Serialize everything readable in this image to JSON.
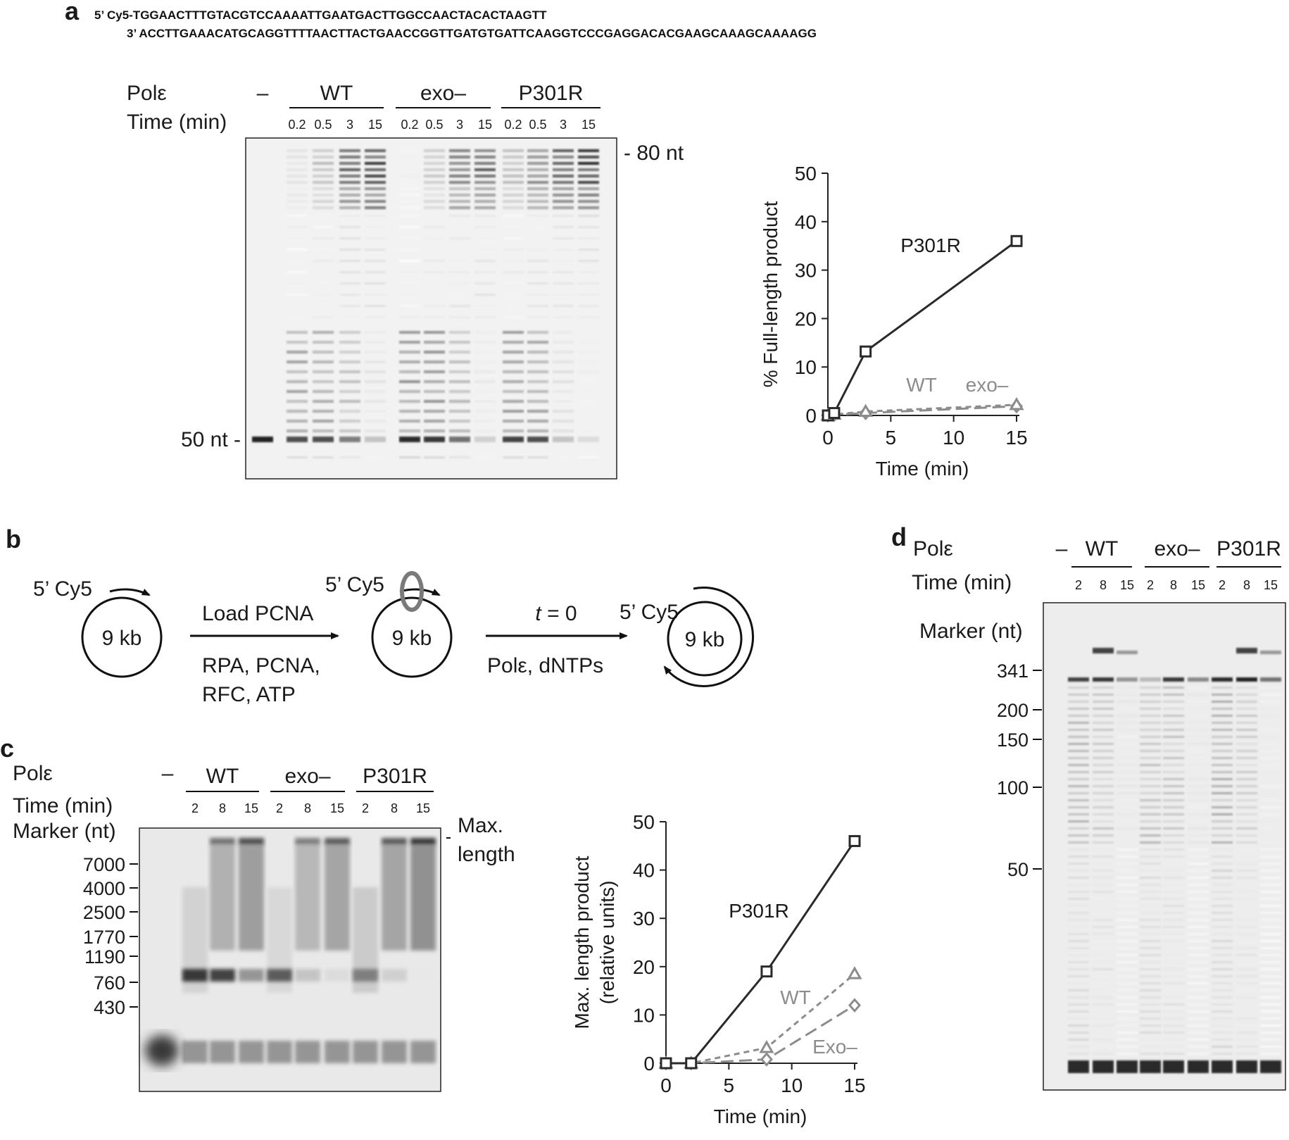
{
  "panel_a": {
    "letter": "a",
    "seq_top": "5’ Cy5-TGGAACTTTGTACGTCCAAAATTGAATGACTTGGCCAACTACACTAAGTT",
    "seq_bottom": "3’ ACCTTGAAACATGCAGGTTTTAACTTACTGAACCGGTTGATGTGATTCAAGGTCCCGAGGACACGAAGCAAAGCAAAAGG",
    "row_pol": "Polε",
    "row_time": "Time (min)",
    "dash": "–",
    "groups": [
      "WT",
      "exo–",
      "P301R"
    ],
    "lanes": [
      "0.2",
      "0.5",
      "3",
      "15",
      "0.2",
      "0.5",
      "3",
      "15",
      "0.2",
      "0.5",
      "3",
      "15"
    ],
    "marker_80": "- 80 nt",
    "marker_50": "50 nt -"
  },
  "panel_b": {
    "letter": "b",
    "cy5_1": "5’ Cy5",
    "cy5_2": "5’ Cy5",
    "cy5_3": "5’ Cy5",
    "kb_1": "9 kb",
    "kb_2": "9 kb",
    "kb_3": "9 kb",
    "step1_top": "Load PCNA",
    "step1_bottom_1": "RPA, PCNA,",
    "step1_bottom_2": "RFC, ATP",
    "step2_top": "t = 0",
    "step2_bottom": "Polε, dNTPs"
  },
  "panel_c": {
    "letter": "c",
    "row_pol": "Polε",
    "row_time": "Time (min)",
    "row_marker": "Marker (nt)",
    "dash": "–",
    "groups": [
      "WT",
      "exo–",
      "P301R"
    ],
    "lanes": [
      "2",
      "8",
      "15",
      "2",
      "8",
      "15",
      "2",
      "8",
      "15"
    ],
    "markers": [
      "7000",
      "4000",
      "2500",
      "1770",
      "1190",
      "760",
      "430"
    ],
    "max_label_1": "Max.",
    "max_label_2": "length"
  },
  "panel_d": {
    "letter": "d",
    "row_pol": "Polε",
    "row_time": "Time (min)",
    "row_marker": "Marker (nt)",
    "dash": "–",
    "groups": [
      "WT",
      "exo–",
      "P301R"
    ],
    "lanes": [
      "2",
      "8",
      "15",
      "2",
      "8",
      "15",
      "2",
      "8",
      "15"
    ],
    "markers": [
      "341",
      "200",
      "150",
      "100",
      "50"
    ]
  },
  "chart_data": [
    {
      "type": "line",
      "panel": "a",
      "xlabel": "Time (min)",
      "ylabel": "% Full-length product",
      "xlim": [
        0,
        15
      ],
      "ylim": [
        0,
        50
      ],
      "xticks": [
        0,
        5,
        10,
        15
      ],
      "yticks": [
        0,
        10,
        20,
        30,
        40,
        50
      ],
      "x": [
        0,
        0.5,
        3,
        15
      ],
      "series": [
        {
          "name": "P301R",
          "values": [
            0,
            0.5,
            13.2,
            36
          ],
          "color": "#2a2a2a",
          "marker": "square",
          "style": "solid"
        },
        {
          "name": "WT",
          "values": [
            0,
            0.2,
            0.8,
            2.2
          ],
          "color": "#8c8c8c",
          "marker": "triangle",
          "style": "dashed"
        },
        {
          "name": "exo–",
          "values": [
            0,
            0.1,
            0.5,
            1.9
          ],
          "color": "#8c8c8c",
          "marker": "diamond",
          "style": "longdash"
        }
      ]
    },
    {
      "type": "line",
      "panel": "c",
      "xlabel": "Time (min)",
      "ylabel": "Max. length product",
      "ylabel2": "(relative units)",
      "xlim": [
        0,
        15
      ],
      "ylim": [
        0,
        50
      ],
      "xticks": [
        0,
        5,
        10,
        15
      ],
      "yticks": [
        0,
        10,
        20,
        30,
        40,
        50
      ],
      "x": [
        0,
        2,
        8,
        15
      ],
      "series": [
        {
          "name": "P301R",
          "values": [
            0,
            0,
            19,
            46
          ],
          "color": "#2a2a2a",
          "marker": "square",
          "style": "solid"
        },
        {
          "name": "WT",
          "values": [
            0,
            0,
            3.2,
            18.5
          ],
          "color": "#8c8c8c",
          "marker": "triangle",
          "style": "dashed"
        },
        {
          "name": "Exo–",
          "values": [
            0,
            0,
            0.8,
            12
          ],
          "color": "#8c8c8c",
          "marker": "diamond",
          "style": "longdash"
        }
      ]
    }
  ]
}
